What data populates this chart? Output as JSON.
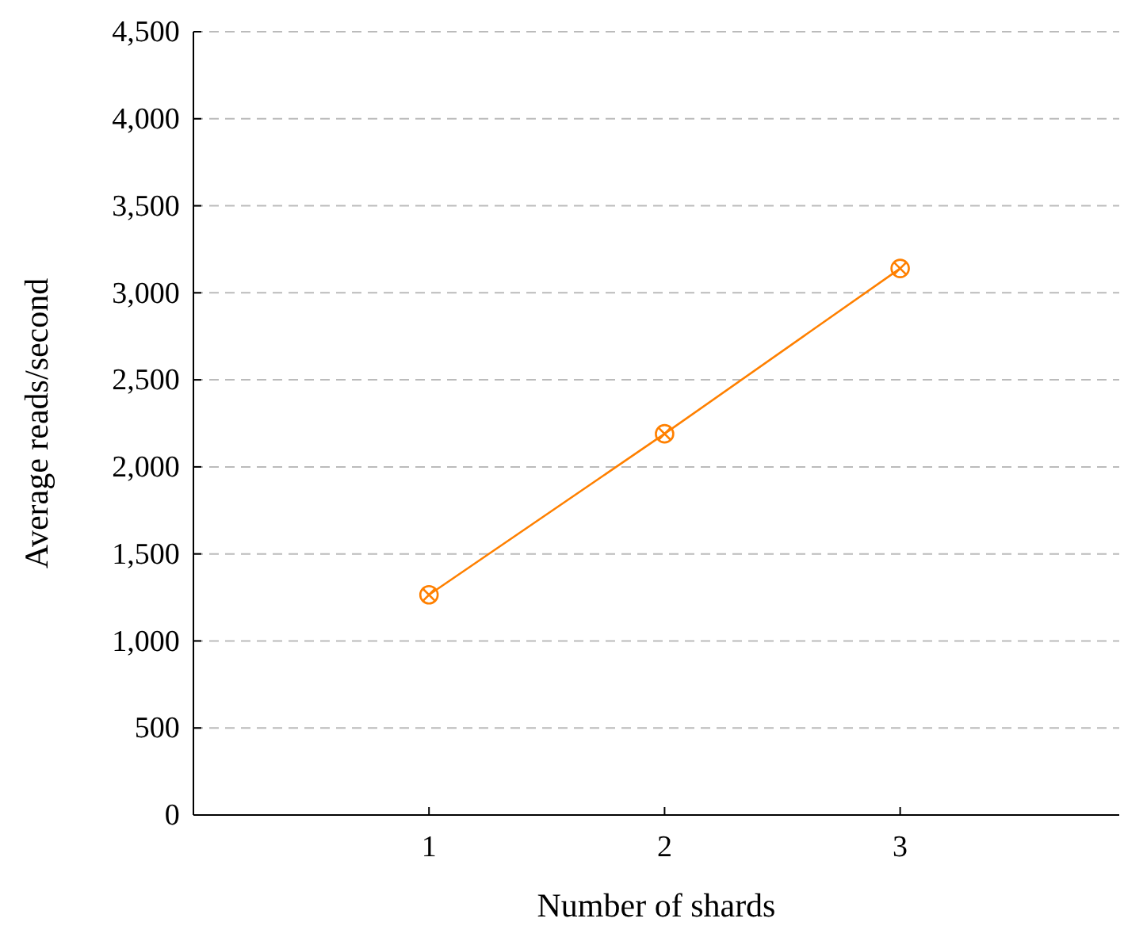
{
  "chart_data": {
    "type": "line",
    "xlabel": "Number of shards",
    "ylabel": "Average reads/second",
    "x": [
      1,
      2,
      3
    ],
    "series": [
      {
        "color": "#ff8000",
        "values": [
          1265,
          2190,
          3140
        ]
      }
    ],
    "xlim": [
      0,
      3.93
    ],
    "xticks": [
      1,
      2,
      3
    ],
    "ylim": [
      0,
      4500
    ],
    "yticks": [
      {
        "value": 0,
        "label": "0"
      },
      {
        "value": 500,
        "label": "500"
      },
      {
        "value": 1000,
        "label": "1,000"
      },
      {
        "value": 1500,
        "label": "1,500"
      },
      {
        "value": 2000,
        "label": "2,000"
      },
      {
        "value": 2500,
        "label": "2,500"
      },
      {
        "value": 3000,
        "label": "3,000"
      },
      {
        "value": 3500,
        "label": "3,500"
      },
      {
        "value": 4000,
        "label": "4,000"
      },
      {
        "value": 4500,
        "label": "4,500"
      }
    ],
    "grid": "y",
    "marker": "circle",
    "line_style": "solid"
  }
}
